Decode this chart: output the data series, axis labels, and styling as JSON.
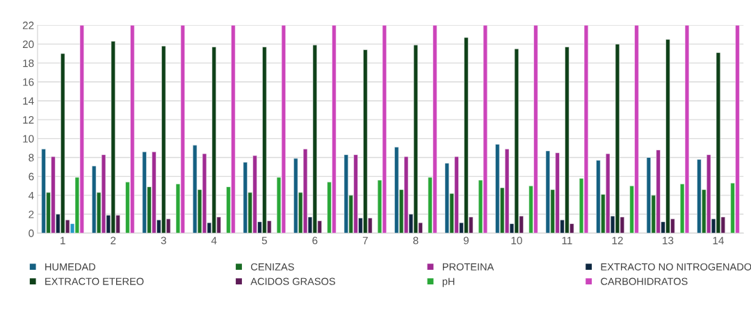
{
  "chart_data": {
    "type": "bar",
    "categories": [
      "1",
      "2",
      "3",
      "4",
      "5",
      "6",
      "7",
      "8",
      "9",
      "10",
      "11",
      "12",
      "13",
      "14"
    ],
    "series": [
      {
        "name": "HUMEDAD",
        "color": "#156082",
        "values": [
          8.9,
          7.1,
          8.6,
          9.3,
          7.5,
          7.9,
          8.3,
          9.1,
          7.4,
          9.4,
          8.7,
          7.7,
          8.0,
          7.8
        ]
      },
      {
        "name": "CENIZAS",
        "color": "#196b24",
        "values": [
          4.3,
          4.3,
          4.9,
          4.6,
          4.3,
          4.3,
          4.0,
          4.6,
          4.2,
          4.8,
          4.6,
          4.1,
          4.0,
          4.6
        ]
      },
      {
        "name": "PROTEINA",
        "color": "#a02b93",
        "values": [
          8.1,
          8.3,
          8.6,
          8.4,
          8.2,
          8.9,
          8.3,
          8.1,
          8.1,
          8.9,
          8.5,
          8.4,
          8.8,
          8.3
        ]
      },
      {
        "name": "EXTRACTO NO NITROGENADO",
        "color": "#0e2841",
        "values": [
          2.0,
          1.9,
          1.4,
          1.1,
          1.2,
          1.7,
          1.6,
          2.0,
          1.1,
          1.0,
          1.4,
          1.8,
          1.2,
          1.5
        ]
      },
      {
        "name": "EXTRACTO ETEREO",
        "color": "#0f4119",
        "values": [
          19.0,
          20.3,
          19.8,
          19.7,
          19.7,
          19.9,
          19.4,
          19.9,
          20.7,
          19.5,
          19.7,
          20.0,
          20.5,
          19.1
        ]
      },
      {
        "name": "ACIDOS GRASOS",
        "color": "#5e1b57",
        "values": [
          1.4,
          1.9,
          1.5,
          1.7,
          1.3,
          1.3,
          1.6,
          1.1,
          1.7,
          1.8,
          1.0,
          1.7,
          1.5,
          1.7
        ]
      },
      {
        "color": "#2597c7",
        "values": [
          1.0,
          null,
          null,
          null,
          null,
          null,
          null,
          null,
          null,
          null,
          null,
          null,
          null,
          null
        ]
      },
      {
        "name": "pH",
        "color": "#2aa838",
        "values": [
          5.9,
          5.4,
          5.2,
          4.9,
          5.9,
          5.4,
          5.6,
          5.9,
          5.6,
          5.0,
          5.8,
          5.0,
          5.2,
          5.3
        ]
      },
      {
        "name": "CARBOHIDRATOS",
        "color": "#cc44bb",
        "values": [
          22,
          22,
          22,
          22,
          22,
          22,
          22,
          22,
          22,
          22,
          22,
          22,
          22,
          22
        ]
      }
    ],
    "ylim": [
      0,
      22
    ],
    "yticks": [
      0,
      2,
      4,
      6,
      8,
      10,
      12,
      14,
      16,
      18,
      20,
      22
    ],
    "grid": "y",
    "legend": "bottom"
  }
}
